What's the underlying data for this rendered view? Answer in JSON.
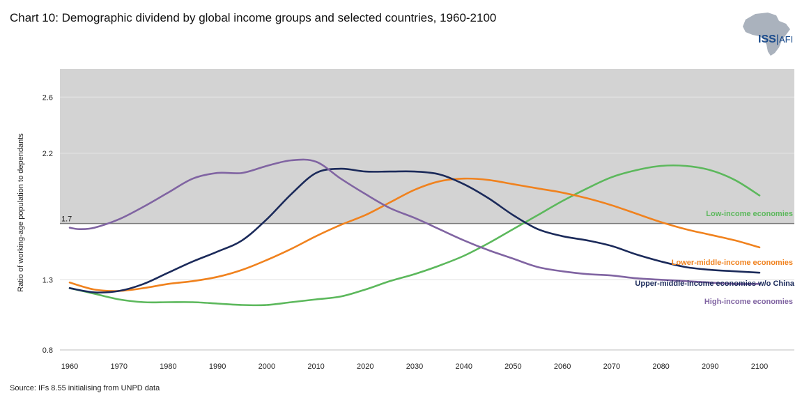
{
  "title": "Chart 10: Demographic dividend by global income groups and selected countries, 1960-2100",
  "logo": {
    "text_main": "ISS",
    "text_sep": "|",
    "text_sub": "AFI"
  },
  "source": "Source: IFs 8.55 initialising from UNPD data",
  "colors": {
    "shade": "#d3d3d3",
    "threshold_line": "#7a7a7a",
    "grid": "#e0e0e0",
    "low": "#5cb85c",
    "lower_middle": "#f0821e",
    "upper_middle": "#1b2a5a",
    "high": "#8064a2",
    "logo_africa": "#aab2bd"
  },
  "chart_data": {
    "type": "line",
    "title": "Chart 10: Demographic dividend by global income groups and selected countries, 1960-2100",
    "xlabel": "",
    "ylabel": "Ratio of working-age population to dependants",
    "xlim": [
      1960,
      2100
    ],
    "ylim": [
      0.8,
      2.8
    ],
    "x_ticks": [
      1960,
      1970,
      1980,
      1990,
      2000,
      2010,
      2020,
      2030,
      2040,
      2050,
      2060,
      2070,
      2080,
      2090,
      2100
    ],
    "y_ticks": [
      0.8,
      1.3,
      1.7,
      2.2,
      2.6
    ],
    "y_tick_labels": [
      "0.8",
      "1.3",
      "1.7",
      "2.2",
      "2.6"
    ],
    "threshold": {
      "value": 1.7,
      "label": "1.7",
      "shaded_above": true
    },
    "series": [
      {
        "key": "low",
        "name": "Low-income economies",
        "x": [
          1960,
          1965,
          1970,
          1975,
          1980,
          1985,
          1990,
          1995,
          2000,
          2005,
          2010,
          2015,
          2020,
          2025,
          2030,
          2035,
          2040,
          2045,
          2050,
          2055,
          2060,
          2065,
          2070,
          2075,
          2080,
          2085,
          2090,
          2095,
          2100
        ],
        "y": [
          1.24,
          1.2,
          1.16,
          1.14,
          1.14,
          1.14,
          1.13,
          1.12,
          1.12,
          1.14,
          1.16,
          1.18,
          1.23,
          1.29,
          1.34,
          1.4,
          1.47,
          1.56,
          1.66,
          1.76,
          1.86,
          1.95,
          2.03,
          2.08,
          2.11,
          2.11,
          2.08,
          2.01,
          1.9
        ]
      },
      {
        "key": "lower_middle",
        "name": "Lower-middle-income economies",
        "x": [
          1960,
          1965,
          1970,
          1975,
          1980,
          1985,
          1990,
          1995,
          2000,
          2005,
          2010,
          2015,
          2020,
          2025,
          2030,
          2035,
          2040,
          2045,
          2050,
          2055,
          2060,
          2065,
          2070,
          2075,
          2080,
          2085,
          2090,
          2095,
          2100
        ],
        "y": [
          1.28,
          1.23,
          1.22,
          1.24,
          1.27,
          1.29,
          1.32,
          1.37,
          1.44,
          1.52,
          1.61,
          1.69,
          1.76,
          1.85,
          1.94,
          2.0,
          2.02,
          2.01,
          1.98,
          1.95,
          1.92,
          1.88,
          1.83,
          1.77,
          1.71,
          1.66,
          1.62,
          1.58,
          1.53
        ]
      },
      {
        "key": "upper_middle",
        "name": "Upper-middle-income economies w/o China",
        "x": [
          1960,
          1965,
          1970,
          1975,
          1980,
          1985,
          1990,
          1995,
          2000,
          2005,
          2010,
          2015,
          2020,
          2025,
          2030,
          2035,
          2040,
          2045,
          2050,
          2055,
          2060,
          2065,
          2070,
          2075,
          2080,
          2085,
          2090,
          2095,
          2100
        ],
        "y": [
          1.24,
          1.21,
          1.22,
          1.27,
          1.35,
          1.43,
          1.5,
          1.58,
          1.73,
          1.91,
          2.06,
          2.09,
          2.07,
          2.07,
          2.07,
          2.05,
          1.98,
          1.88,
          1.76,
          1.66,
          1.61,
          1.58,
          1.54,
          1.48,
          1.43,
          1.39,
          1.37,
          1.36,
          1.35
        ]
      },
      {
        "key": "high",
        "name": "High-income economies",
        "x": [
          1960,
          1962,
          1965,
          1970,
          1975,
          1980,
          1985,
          1990,
          1995,
          2000,
          2005,
          2010,
          2015,
          2020,
          2025,
          2030,
          2035,
          2040,
          2045,
          2050,
          2055,
          2060,
          2065,
          2070,
          2075,
          2080,
          2085,
          2090,
          2095,
          2100
        ],
        "y": [
          1.67,
          1.66,
          1.67,
          1.73,
          1.82,
          1.92,
          2.02,
          2.06,
          2.06,
          2.11,
          2.15,
          2.14,
          2.02,
          1.91,
          1.81,
          1.74,
          1.66,
          1.58,
          1.51,
          1.45,
          1.39,
          1.36,
          1.34,
          1.33,
          1.31,
          1.3,
          1.29,
          1.28,
          1.27,
          1.27
        ]
      }
    ]
  }
}
